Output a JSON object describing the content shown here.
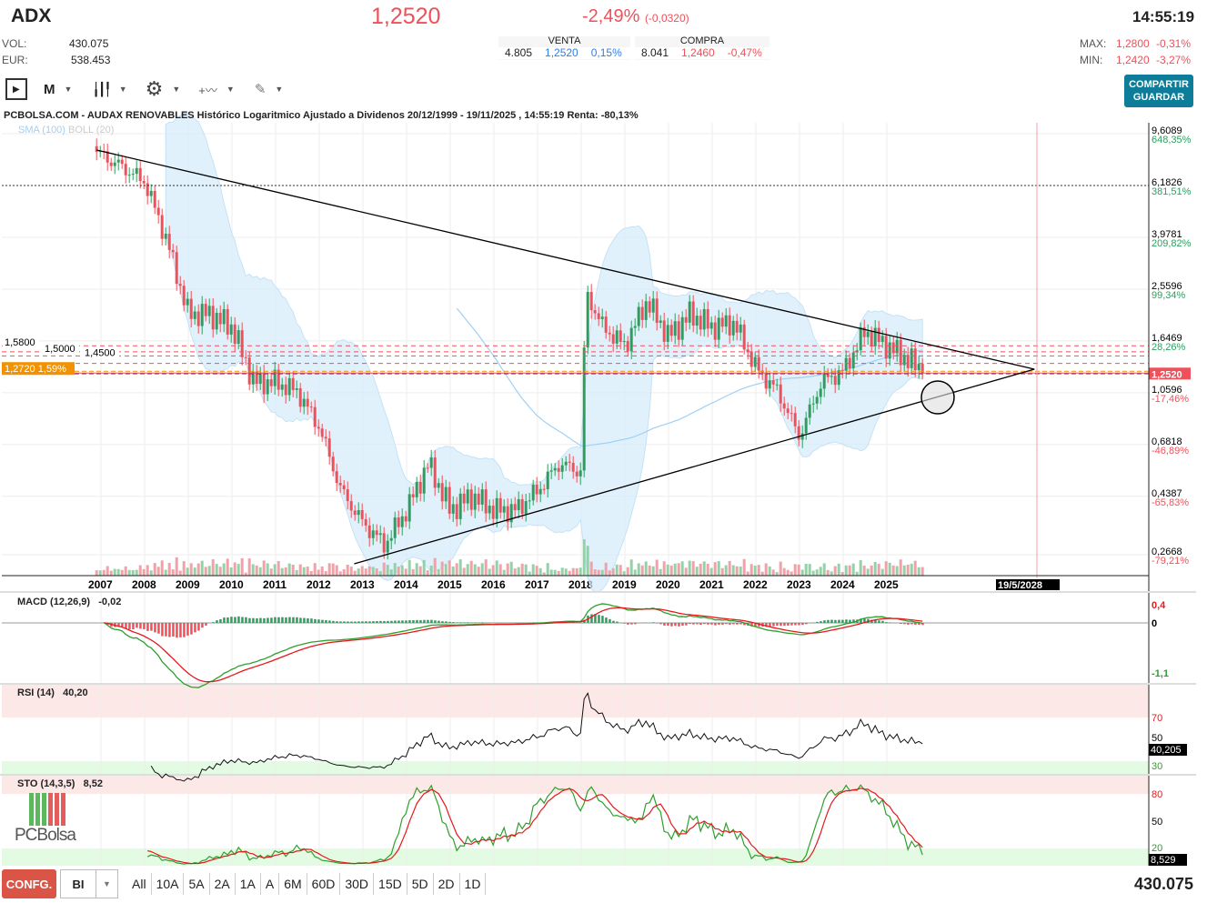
{
  "header": {
    "ticker": "ADX",
    "price": "1,2520",
    "change_pct": "-2,49%",
    "change_abs": "(-0,0320)",
    "time": "14:55:19",
    "vol_label": "VOL:",
    "vol": "430.075",
    "eur_label": "EUR:",
    "eur": "538.453",
    "venta": {
      "label": "VENTA",
      "qty": "4.805",
      "price": "1,2520",
      "pct": "0,15%"
    },
    "compra": {
      "label": "COMPRA",
      "qty": "8.041",
      "price": "1,2460",
      "pct": "-0,47%"
    },
    "max_label": "MAX:",
    "max": "1,2800",
    "max_pct": "-0,31%",
    "min_label": "MIN:",
    "min": "1,2420",
    "min_pct": "-3,27%",
    "share_button": "COMPARTIR",
    "save_button": "GUARDAR"
  },
  "toolbar": {
    "period": "M",
    "icons": [
      "sidebar-toggle-icon",
      "candlestick-icon",
      "gear-icon",
      "drawing-tools-icon",
      "pencil-icon"
    ]
  },
  "chart_title": "PCBOLSA.COM - AUDAX RENOVABLES Histórico Logaritmico Ajustado a Dividenos 20/12/1999 - 19/11/2025 , 14:55:19 Renta: -80,13%",
  "legend": {
    "sma": "SMA (100)",
    "boll": "BOLL (20)"
  },
  "colors": {
    "up": "#2e9e5e",
    "down": "#f0505a",
    "boll": "#d4ebfb",
    "sma": "#9fd0f5",
    "accent": "#0e7d99"
  },
  "chart_data": {
    "type": "candlestick",
    "scale": "log",
    "frequency": "monthly",
    "y_ticks": [
      {
        "v": "9,6089",
        "p": "648,35%"
      },
      {
        "v": "6,1826",
        "p": "381,51%"
      },
      {
        "v": "3,9781",
        "p": "209,82%"
      },
      {
        "v": "2,5596",
        "p": "99,34%"
      },
      {
        "v": "1,6469",
        "p": "28,26%"
      },
      {
        "v": "1,0596",
        "p": "-17,46%"
      },
      {
        "v": "0,6818",
        "p": "-46,89%"
      },
      {
        "v": "0,4387",
        "p": "-65,83%"
      },
      {
        "v": "0,2668",
        "p": "-79,21%"
      }
    ],
    "x_ticks": [
      "2007",
      "2008",
      "2009",
      "2010",
      "2011",
      "2012",
      "2013",
      "2014",
      "2015",
      "2016",
      "2017",
      "2018",
      "2019",
      "2020",
      "2021",
      "2022",
      "2023",
      "2024",
      "2025"
    ],
    "future_marker": "19/5/2028",
    "last_price_label": "1,2520",
    "level_labels": [
      "1,5800",
      "1,5000",
      "1,4500"
    ],
    "orange_level": {
      "label": "1,2720",
      "pct": "1,59%"
    },
    "close_keypoints": [
      [
        2006.9,
        8.2
      ],
      [
        2007.5,
        7.2
      ],
      [
        2008,
        6.4
      ],
      [
        2008.5,
        3.9
      ],
      [
        2009,
        2.07
      ],
      [
        2009.5,
        2.07
      ],
      [
        2010,
        1.85
      ],
      [
        2010.5,
        1.16
      ],
      [
        2011,
        1.16
      ],
      [
        2011.5,
        1.07
      ],
      [
        2012,
        0.79
      ],
      [
        2012.5,
        0.46
      ],
      [
        2013,
        0.35
      ],
      [
        2013.5,
        0.29
      ],
      [
        2014,
        0.39
      ],
      [
        2014.5,
        0.58
      ],
      [
        2015,
        0.39
      ],
      [
        2015.5,
        0.44
      ],
      [
        2016,
        0.39
      ],
      [
        2016.5,
        0.39
      ],
      [
        2017,
        0.46
      ],
      [
        2017.5,
        0.58
      ],
      [
        2018,
        0.54
      ],
      [
        2018.1,
        2.5
      ],
      [
        2018.5,
        1.85
      ],
      [
        2019,
        1.58
      ],
      [
        2019.5,
        2.31
      ],
      [
        2020,
        1.71
      ],
      [
        2020.5,
        2.07
      ],
      [
        2021,
        1.85
      ],
      [
        2021.5,
        1.92
      ],
      [
        2022,
        1.31
      ],
      [
        2022.5,
        1.07
      ],
      [
        2023,
        0.73
      ],
      [
        2023.5,
        1.16
      ],
      [
        2024,
        1.27
      ],
      [
        2024.5,
        1.79
      ],
      [
        2025,
        1.58
      ],
      [
        2025.5,
        1.4
      ],
      [
        2025.88,
        1.252
      ]
    ]
  },
  "indicators": {
    "macd": {
      "label": "MACD (12,26,9)",
      "value": "-0,02",
      "ticks": [
        "0,4",
        "0",
        "-1,1"
      ]
    },
    "rsi": {
      "label": "RSI (14)",
      "value": "40,20",
      "ticks": [
        "70",
        "50",
        "30"
      ],
      "last": "40,205"
    },
    "sto": {
      "label": "STO (14,3,5)",
      "value": "8,52",
      "ticks": [
        "80",
        "50",
        "20"
      ],
      "last": "8,529"
    }
  },
  "logo": "PCBolsa",
  "bottom": {
    "config": "CONFG.",
    "mode": "BI",
    "timeframes": [
      "All",
      "10A",
      "5A",
      "2A",
      "1A",
      "A",
      "6M",
      "60D",
      "30D",
      "15D",
      "5D",
      "2D",
      "1D"
    ],
    "volume": "430.075"
  }
}
